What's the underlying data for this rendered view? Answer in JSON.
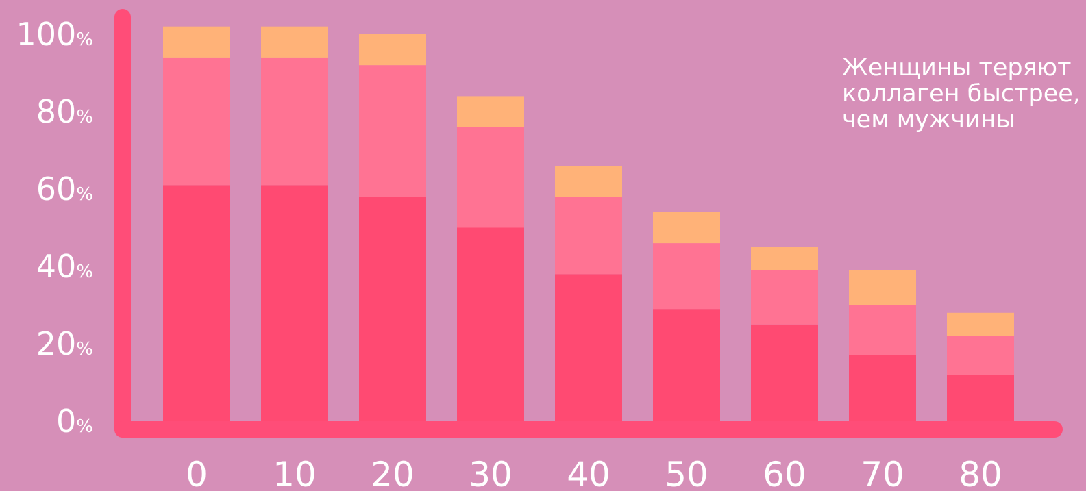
{
  "chart_data": {
    "type": "bar",
    "stacked": true,
    "categories": [
      "0",
      "10",
      "20",
      "30",
      "40",
      "50",
      "60",
      "70",
      "80"
    ],
    "series": [
      {
        "values": [
          61,
          61,
          58,
          50,
          38,
          29,
          25,
          17,
          12
        ]
      },
      {
        "values": [
          33,
          33,
          34,
          26,
          20,
          17,
          14,
          13,
          10
        ]
      },
      {
        "values": [
          8,
          8,
          8,
          8,
          8,
          8,
          6,
          9,
          6
        ]
      }
    ],
    "ylim": [
      0,
      100
    ],
    "yticks": [
      {
        "num": "100",
        "pct": "%"
      },
      {
        "num": "80",
        "pct": "%"
      },
      {
        "num": "60",
        "pct": "%"
      },
      {
        "num": "40",
        "pct": "%"
      },
      {
        "num": "20",
        "pct": "%"
      },
      {
        "num": "0",
        "pct": "%"
      }
    ],
    "annotation": [
      "Женщины теряют",
      "коллаген быстрее,",
      "чем мужчины"
    ],
    "grid": false,
    "legend": "none",
    "colors": {
      "background": "#d68fb8",
      "axis": "#ff4d78",
      "series": [
        "#ff4a72",
        "#ff7393",
        "#ffb278"
      ]
    }
  }
}
